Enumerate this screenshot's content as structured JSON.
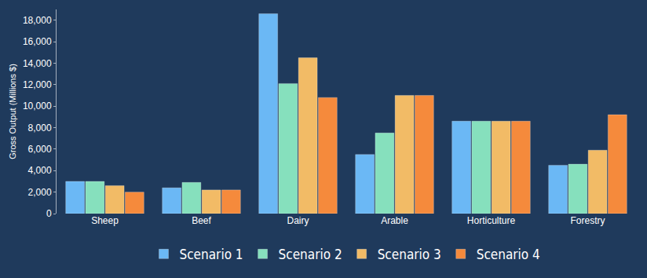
{
  "chart_data": {
    "type": "bar",
    "y_label": "Gross Output (Millions $)",
    "categories": [
      "Sheep",
      "Beef",
      "Dairy",
      "Arable",
      "Horticulture",
      "Forestry"
    ],
    "series": [
      {
        "name": "Scenario 1",
        "color": "#6bb8f5",
        "values": [
          3000,
          2400,
          18600,
          5500,
          8600,
          4500
        ]
      },
      {
        "name": "Scenario 2",
        "color": "#86e0bd",
        "values": [
          3000,
          2900,
          12100,
          7500,
          8600,
          4600
        ]
      },
      {
        "name": "Scenario 3",
        "color": "#f2bb66",
        "values": [
          2600,
          2200,
          14500,
          11000,
          8600,
          5900
        ]
      },
      {
        "name": "Scenario 4",
        "color": "#f58a3c",
        "values": [
          2000,
          2200,
          10800,
          11000,
          8600,
          9200
        ]
      }
    ],
    "ylim": [
      0,
      19000
    ],
    "yticks": [
      0,
      {
        "value": 2000,
        "label": "2,000"
      },
      {
        "value": 4000,
        "label": "4,000"
      },
      {
        "value": 6000,
        "label": "6,000"
      },
      {
        "value": 8000,
        "label": "8,000"
      },
      {
        "value": 10000,
        "label": "10,000"
      },
      {
        "value": 12000,
        "label": "12,000"
      },
      {
        "value": 14000,
        "label": "14,000"
      },
      {
        "value": 16000,
        "label": "16,000"
      },
      {
        "value": 18000,
        "label": "18,000"
      }
    ],
    "grid": false,
    "legend": "bottom"
  }
}
